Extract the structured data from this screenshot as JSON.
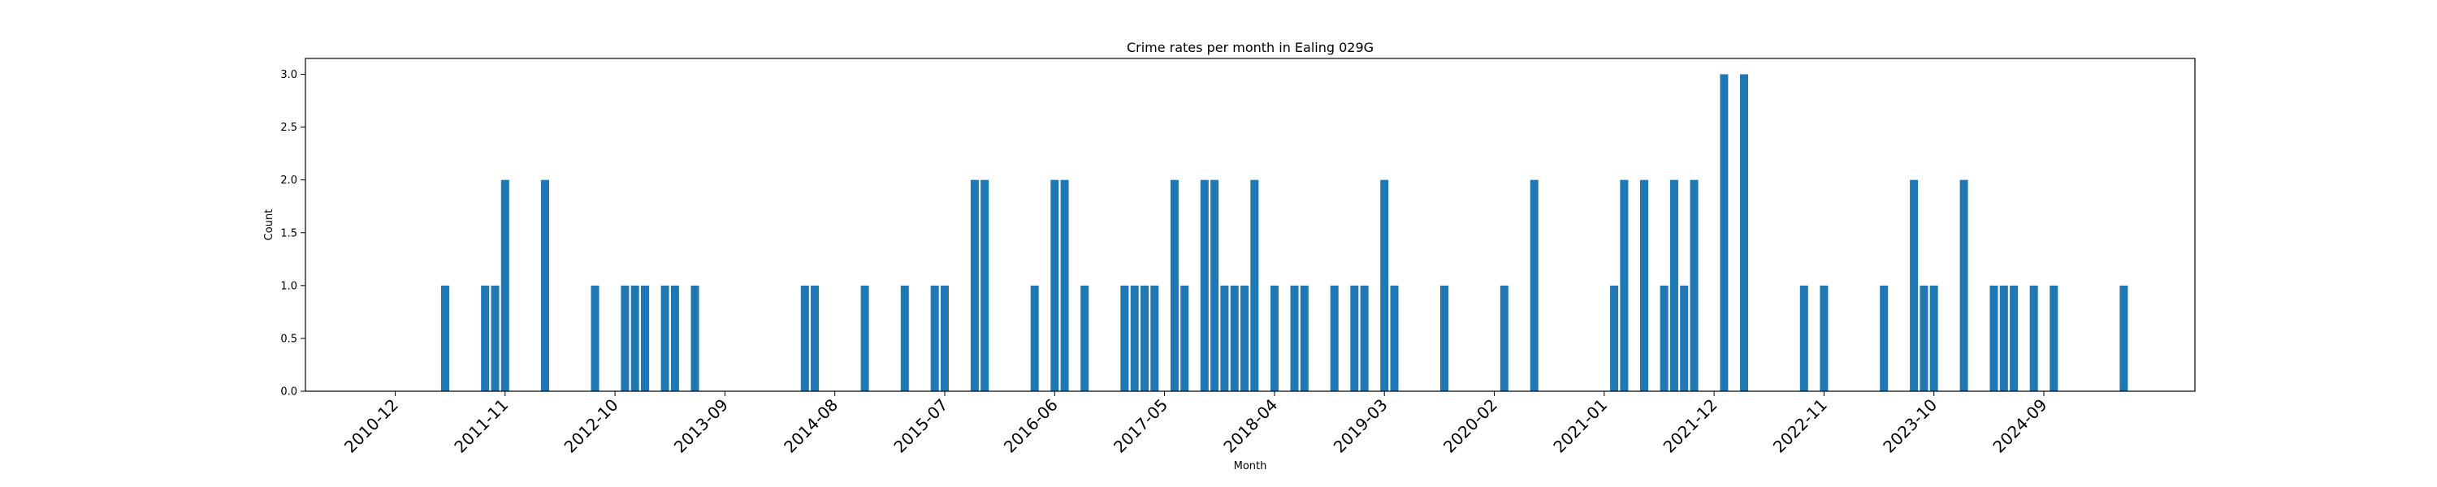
{
  "chart_data": {
    "type": "bar",
    "title": "Crime rates per month in Ealing 029G",
    "xlabel": "Month",
    "ylabel": "Count",
    "ylim": [
      0,
      3.15
    ],
    "yticks": [
      "0.0",
      "0.5",
      "1.0",
      "1.5",
      "2.0",
      "2.5",
      "3.0"
    ],
    "xticks": [
      "2010-12",
      "2011-11",
      "2012-10",
      "2013-09",
      "2014-08",
      "2015-07",
      "2016-06",
      "2017-05",
      "2018-04",
      "2019-03",
      "2020-02",
      "2021-01",
      "2021-12",
      "2022-11",
      "2023-10",
      "2024-09"
    ],
    "grid": false,
    "color": "#1f77b4",
    "categories": [
      "2011-05",
      "2011-09",
      "2011-10",
      "2011-11",
      "2012-03",
      "2012-08",
      "2012-11",
      "2012-12",
      "2013-01",
      "2013-03",
      "2013-04",
      "2013-06",
      "2014-05",
      "2014-06",
      "2014-11",
      "2015-03",
      "2015-06",
      "2015-07",
      "2015-10",
      "2015-11",
      "2016-04",
      "2016-06",
      "2016-07",
      "2016-09",
      "2017-01",
      "2017-02",
      "2017-03",
      "2017-04",
      "2017-06",
      "2017-07",
      "2017-09",
      "2017-10",
      "2017-11",
      "2017-12",
      "2018-01",
      "2018-02",
      "2018-04",
      "2018-06",
      "2018-07",
      "2018-10",
      "2018-12",
      "2019-01",
      "2019-03",
      "2019-04",
      "2019-09",
      "2020-03",
      "2020-06",
      "2021-02",
      "2021-03",
      "2021-05",
      "2021-07",
      "2021-08",
      "2021-09",
      "2021-10",
      "2022-01",
      "2022-03",
      "2022-09",
      "2022-11",
      "2023-05",
      "2023-08",
      "2023-09",
      "2023-10",
      "2024-01",
      "2024-04",
      "2024-05",
      "2024-06",
      "2024-08",
      "2024-10",
      "2025-05"
    ],
    "values": [
      1,
      1,
      1,
      2,
      2,
      1,
      1,
      1,
      1,
      1,
      1,
      1,
      1,
      1,
      1,
      1,
      1,
      1,
      2,
      2,
      1,
      2,
      2,
      1,
      1,
      1,
      1,
      1,
      2,
      1,
      2,
      2,
      1,
      1,
      1,
      2,
      1,
      1,
      1,
      1,
      1,
      1,
      2,
      1,
      1,
      1,
      2,
      1,
      2,
      2,
      1,
      2,
      1,
      2,
      3,
      3,
      1,
      1,
      1,
      2,
      1,
      1,
      2,
      1,
      1,
      1,
      1,
      1,
      1
    ]
  }
}
